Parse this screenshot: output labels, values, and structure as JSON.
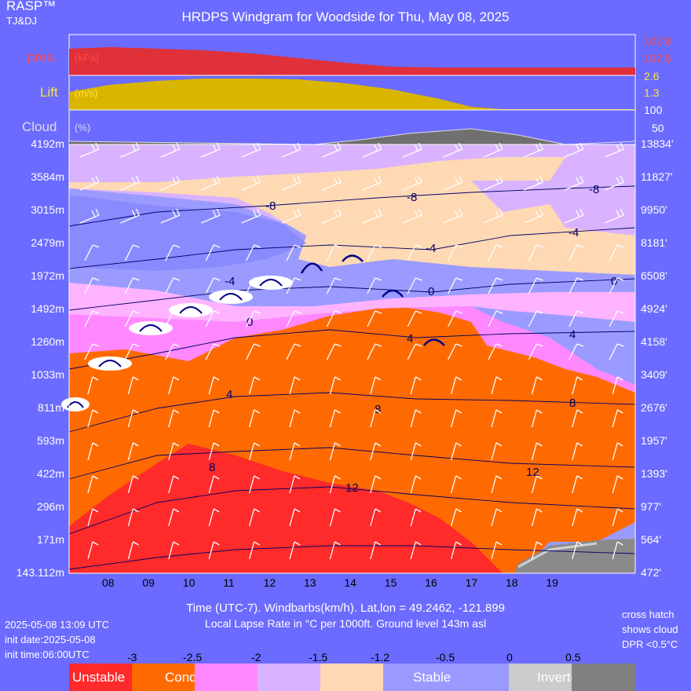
{
  "header": {
    "brand": "RASP™",
    "brand_sub": "TJ&DJ",
    "title": "HRDPS Windgram for Woodside for Thu, May 08, 2025"
  },
  "panels": {
    "pressure": {
      "label": "pres.",
      "unit": "(kPa)",
      "scale": [
        "102.8",
        "102.5"
      ]
    },
    "lift": {
      "label": "Lift",
      "unit": "(m/s)",
      "scale": [
        "2.6",
        "1.3"
      ]
    },
    "cloud": {
      "label": "Cloud",
      "unit": "(%)",
      "scale": [
        "100",
        "50"
      ]
    }
  },
  "y_axis_left": [
    "4192m",
    "3584m",
    "3015m",
    "2479m",
    "1972m",
    "1492m",
    "1260m",
    "1033m",
    "811m",
    "593m",
    "422m",
    "296m",
    "171m",
    "143.112m"
  ],
  "y_axis_right": [
    "13834'",
    "11827'",
    "9950'",
    "8181'",
    "6508'",
    "4924'",
    "4158'",
    "3409'",
    "2676'",
    "1957'",
    "1393'",
    "977'",
    "564'",
    "472'"
  ],
  "x_axis": {
    "ticks": [
      "08",
      "09",
      "10",
      "11",
      "12",
      "13",
      "14",
      "15",
      "16",
      "17",
      "18",
      "19"
    ]
  },
  "info": {
    "line1": "Time (UTC-7). Windbarbs(km/h). Lat,lon = 49.2462, -121.899",
    "line2": "Local Lapse Rate in °C per 1000ft.    Ground level 143m asl",
    "run_time": "2025-05-08 13:09 UTC",
    "init_date": "init date:2025-05-08",
    "init_time": "init time:06:00UTC",
    "note1": "cross hatch",
    "note2": "shows cloud",
    "note3": "DPR <0.5°C"
  },
  "legend": {
    "ticks": [
      "-3",
      "-2.5",
      "-2",
      "-1.5",
      "-1.2",
      "-0.5",
      "0",
      "0.5"
    ],
    "labels": [
      "Unstable",
      "Conditional Instability",
      "Stable",
      "Inverted"
    ],
    "colors": [
      "#ff2a2a",
      "#ff6600",
      "#ff88ff",
      "#d9b3ff",
      "#ffd9b3",
      "#9999ff",
      "#cccccc",
      "#808080"
    ]
  },
  "chart_data": {
    "type": "heatmap",
    "title": "HRDPS Windgram for Woodside for Thu, May 08, 2025",
    "xlabel": "Time (UTC-7). Windbarbs(km/h). Lat,lon = 49.2462, -121.899",
    "x": [
      "08",
      "09",
      "10",
      "11",
      "12",
      "13",
      "14",
      "15",
      "16",
      "17",
      "18",
      "19"
    ],
    "temperature_contour_labels": [
      "-8",
      "-8",
      "-8",
      "-4",
      "-4",
      "-4",
      "0",
      "0",
      "0",
      "4",
      "4",
      "4",
      "8",
      "8",
      "8",
      "12",
      "12"
    ],
    "pressure_kpa_range": [
      102.5,
      102.8
    ],
    "lift_ms_range": [
      0,
      2.6
    ],
    "cloud_pct_range": [
      0,
      100
    ]
  }
}
